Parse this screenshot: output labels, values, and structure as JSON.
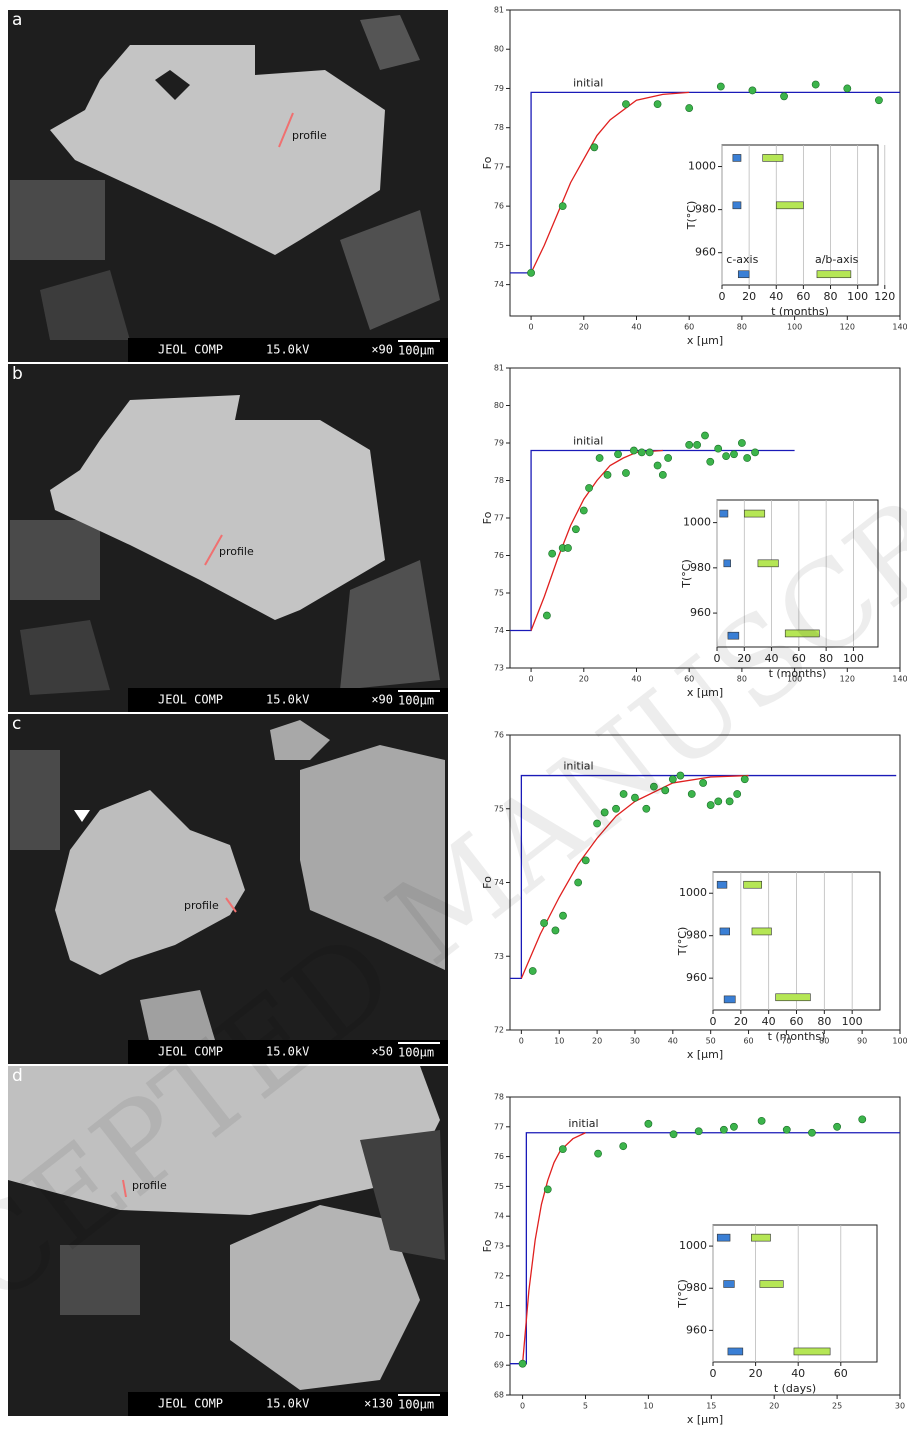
{
  "watermark": "ACCEPTED MANUSCRIPT",
  "images": [
    {
      "label": "a",
      "profile": "profile",
      "instrument": "JEOL COMP",
      "voltage": "15.0kV",
      "magnification": "×90",
      "scale": "100μm"
    },
    {
      "label": "b",
      "profile": "profile",
      "instrument": "JEOL COMP",
      "voltage": "15.0kV",
      "magnification": "×90",
      "scale": "100μm"
    },
    {
      "label": "c",
      "profile": "profile",
      "instrument": "JEOL COMP",
      "voltage": "15.0kV",
      "magnification": "×50",
      "scale": "100μm"
    },
    {
      "label": "d",
      "profile": "profile",
      "instrument": "JEOL COMP",
      "voltage": "15.0kV",
      "magnification": "×130",
      "scale": "100μm"
    }
  ],
  "chart_data": [
    {
      "type": "line",
      "xlabel": "x [μm]",
      "ylabel": "Fo",
      "xlim": [
        -8,
        140
      ],
      "ylim": [
        73.2,
        81
      ],
      "xticks": [
        0,
        20,
        40,
        60,
        80,
        100,
        120,
        140
      ],
      "yticks": [
        74,
        75,
        76,
        77,
        78,
        79,
        80,
        81
      ],
      "series": [
        {
          "name": "initial",
          "color": "#1a1ab8",
          "x": [
            -8,
            0,
            0,
            140
          ],
          "values": [
            74.3,
            74.3,
            78.9,
            78.9
          ]
        },
        {
          "color": "#e0201f",
          "x": [
            0,
            5,
            10,
            15,
            20,
            25,
            30,
            40,
            50,
            60
          ],
          "values": [
            74.3,
            75.0,
            75.8,
            76.6,
            77.2,
            77.8,
            78.2,
            78.7,
            78.85,
            78.9
          ]
        },
        {
          "type": "scatter",
          "color": "#3cb44b",
          "x": [
            0,
            12,
            24,
            36,
            48,
            60,
            72,
            84,
            96,
            108,
            120,
            132
          ],
          "values": [
            74.3,
            76.0,
            77.5,
            78.6,
            78.6,
            78.5,
            79.05,
            78.95,
            78.8,
            79.1,
            79.0,
            78.7
          ]
        }
      ],
      "inset": {
        "type": "bar",
        "xlabel": "t (months)",
        "ylabel": "T(°C)",
        "xlim": [
          0,
          115
        ],
        "ylim": [
          945,
          1010
        ],
        "xticks": [
          0,
          20,
          40,
          60,
          80,
          100,
          120
        ],
        "yticks": [
          960,
          980,
          1000
        ],
        "grid": true,
        "series": [
          {
            "name": "c-axis",
            "color": "#3a7fd5",
            "T": [
              1004,
              982,
              950
            ],
            "t_start": [
              8,
              8,
              12
            ],
            "t_end": [
              14,
              14,
              20
            ]
          },
          {
            "name": "a/b-axis",
            "color": "#b5e655",
            "T": [
              1004,
              982,
              950
            ],
            "t_start": [
              30,
              40,
              70
            ],
            "t_end": [
              45,
              60,
              95
            ]
          }
        ]
      }
    },
    {
      "type": "line",
      "xlabel": "x [μm]",
      "ylabel": "Fo",
      "xlim": [
        -8,
        140
      ],
      "ylim": [
        73,
        81
      ],
      "xticks": [
        0,
        20,
        40,
        60,
        80,
        100,
        120,
        140
      ],
      "yticks": [
        73,
        74,
        75,
        76,
        77,
        78,
        79,
        80,
        81
      ],
      "series": [
        {
          "name": "initial",
          "color": "#1a1ab8",
          "x": [
            -8,
            0,
            0,
            100
          ],
          "values": [
            74.0,
            74.0,
            78.8,
            78.8
          ]
        },
        {
          "color": "#e0201f",
          "x": [
            0,
            5,
            10,
            15,
            20,
            25,
            30,
            35,
            40,
            50
          ],
          "values": [
            74.0,
            74.9,
            75.9,
            76.8,
            77.5,
            78.0,
            78.4,
            78.6,
            78.75,
            78.8
          ]
        },
        {
          "type": "scatter",
          "color": "#3cb44b",
          "x": [
            6,
            8,
            12,
            14,
            17,
            20,
            22,
            26,
            29,
            33,
            36,
            39,
            42,
            45,
            48,
            50,
            52,
            60,
            63,
            66,
            68,
            71,
            74,
            77,
            80,
            82,
            85
          ],
          "values": [
            74.4,
            76.05,
            76.2,
            76.2,
            76.7,
            77.2,
            77.8,
            78.6,
            78.15,
            78.7,
            78.2,
            78.8,
            78.75,
            78.75,
            78.4,
            78.15,
            78.6,
            78.95,
            78.95,
            79.2,
            78.5,
            78.85,
            78.65,
            78.7,
            79.0,
            78.6,
            78.75
          ]
        }
      ],
      "inset": {
        "type": "bar",
        "xlabel": "t (months)",
        "ylabel": "T(°C)",
        "xlim": [
          0,
          118
        ],
        "ylim": [
          945,
          1010
        ],
        "xticks": [
          0,
          20,
          40,
          60,
          80,
          100
        ],
        "yticks": [
          960,
          980,
          1000
        ],
        "grid": true,
        "series": [
          {
            "color": "#3a7fd5",
            "T": [
              1004,
              982,
              950
            ],
            "t_start": [
              2,
              5,
              8
            ],
            "t_end": [
              8,
              10,
              16
            ]
          },
          {
            "color": "#b5e655",
            "T": [
              1004,
              982,
              951
            ],
            "t_start": [
              20,
              30,
              50
            ],
            "t_end": [
              35,
              45,
              75
            ]
          }
        ]
      }
    },
    {
      "type": "line",
      "xlabel": "x [μm]",
      "ylabel": "Fo",
      "xlim": [
        -3,
        100
      ],
      "ylim": [
        72,
        76
      ],
      "xticks": [
        0,
        10,
        20,
        30,
        40,
        50,
        60,
        70,
        80,
        90,
        100
      ],
      "yticks": [
        72,
        73,
        74,
        75,
        76
      ],
      "series": [
        {
          "name": "initial",
          "color": "#1a1ab8",
          "x": [
            -3,
            0,
            0,
            99
          ],
          "values": [
            72.7,
            72.7,
            75.45,
            75.45
          ]
        },
        {
          "color": "#e0201f",
          "x": [
            0,
            5,
            10,
            15,
            20,
            25,
            30,
            40,
            50,
            60
          ],
          "values": [
            72.7,
            73.3,
            73.8,
            74.25,
            74.6,
            74.9,
            75.1,
            75.35,
            75.43,
            75.45
          ]
        },
        {
          "type": "scatter",
          "color": "#3cb44b",
          "x": [
            3,
            6,
            9,
            11,
            15,
            17,
            20,
            22,
            25,
            27,
            30,
            33,
            35,
            38,
            40,
            42,
            45,
            48,
            50,
            52,
            55,
            57,
            59
          ],
          "values": [
            72.8,
            73.45,
            73.35,
            73.55,
            74.0,
            74.3,
            74.8,
            74.95,
            75.0,
            75.2,
            75.15,
            75.0,
            75.3,
            75.25,
            75.4,
            75.45,
            75.2,
            75.35,
            75.05,
            75.1,
            75.1,
            75.2,
            75.4
          ]
        }
      ],
      "inset": {
        "type": "bar",
        "xlabel": "t (months)",
        "ylabel": "T(°C)",
        "xlim": [
          0,
          120
        ],
        "ylim": [
          945,
          1010
        ],
        "xticks": [
          0,
          20,
          40,
          60,
          80,
          100
        ],
        "yticks": [
          960,
          980,
          1000
        ],
        "grid": true,
        "series": [
          {
            "color": "#3a7fd5",
            "T": [
              1004,
              982,
              950
            ],
            "t_start": [
              3,
              5,
              8
            ],
            "t_end": [
              10,
              12,
              16
            ]
          },
          {
            "color": "#b5e655",
            "T": [
              1004,
              982,
              951
            ],
            "t_start": [
              22,
              28,
              45
            ],
            "t_end": [
              35,
              42,
              70
            ]
          }
        ]
      }
    },
    {
      "type": "line",
      "xlabel": "x [μm]",
      "ylabel": "Fo",
      "xlim": [
        -1,
        30
      ],
      "ylim": [
        68,
        78
      ],
      "xticks": [
        0,
        5,
        10,
        15,
        20,
        25,
        30
      ],
      "yticks": [
        68,
        69,
        70,
        71,
        72,
        73,
        74,
        75,
        76,
        77,
        78
      ],
      "series": [
        {
          "name": "initial",
          "color": "#1a1ab8",
          "x": [
            -1,
            0.3,
            0.3,
            30
          ],
          "values": [
            69.05,
            69.05,
            76.8,
            76.8
          ]
        },
        {
          "color": "#e0201f",
          "x": [
            0,
            0.5,
            1,
            1.5,
            2,
            2.5,
            3,
            4,
            5
          ],
          "values": [
            69.05,
            71.5,
            73.2,
            74.4,
            75.2,
            75.8,
            76.2,
            76.6,
            76.8
          ]
        },
        {
          "type": "scatter",
          "color": "#3cb44b",
          "x": [
            0,
            2,
            3.2,
            6,
            8,
            10,
            12,
            14,
            16,
            16.8,
            19,
            21,
            23,
            25,
            27
          ],
          "values": [
            69.05,
            74.9,
            76.25,
            76.1,
            76.35,
            77.1,
            76.75,
            76.85,
            76.9,
            77.0,
            77.2,
            76.9,
            76.8,
            77.0,
            77.25
          ]
        }
      ],
      "inset": {
        "type": "bar",
        "xlabel": "t (days)",
        "ylabel": "T(°C)",
        "xlim": [
          0,
          77
        ],
        "ylim": [
          945,
          1010
        ],
        "xticks": [
          0,
          20,
          40,
          60
        ],
        "yticks": [
          960,
          980,
          1000
        ],
        "grid": true,
        "series": [
          {
            "color": "#3a7fd5",
            "T": [
              1004,
              982,
              950
            ],
            "t_start": [
              2,
              5,
              7
            ],
            "t_end": [
              8,
              10,
              14
            ]
          },
          {
            "color": "#b5e655",
            "T": [
              1004,
              982,
              950
            ],
            "t_start": [
              18,
              22,
              38
            ],
            "t_end": [
              27,
              33,
              55
            ]
          }
        ]
      }
    }
  ]
}
